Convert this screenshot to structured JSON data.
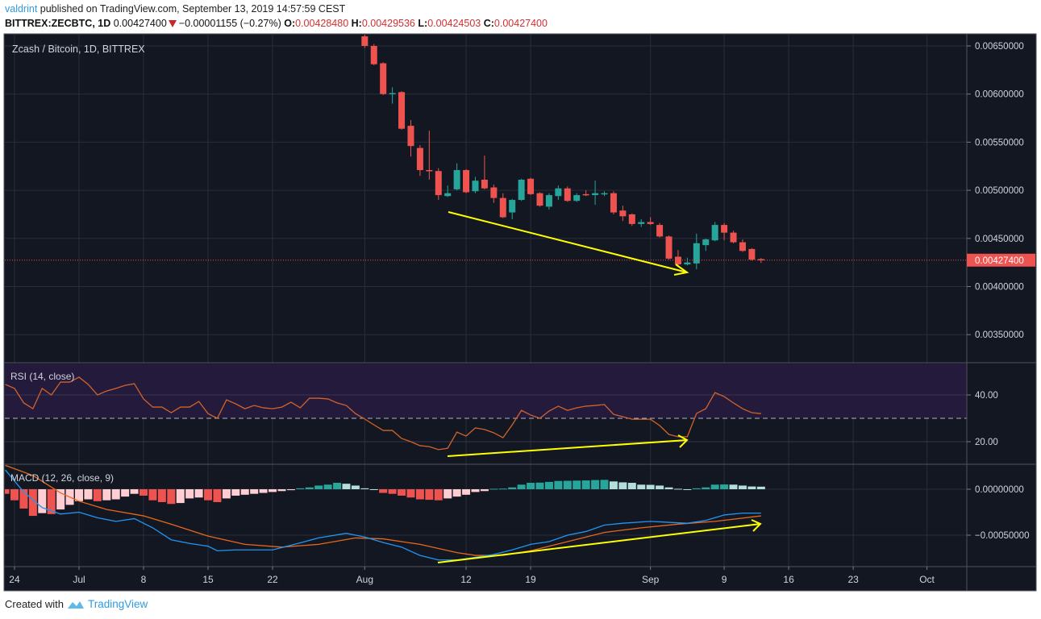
{
  "header": {
    "author": "valdrint",
    "published_text": "published on TradingView.com, September 13, 2019 14:57:59 CEST",
    "symbol": "BITTREX:ZECBTC, 1D",
    "last": "0.00427400",
    "change": "−0.00001155 (−0.27%)",
    "o_label": "O:",
    "o": "0.00428480",
    "h_label": "H:",
    "h": "0.00429536",
    "l_label": "L:",
    "l": "0.00424503",
    "c_label": "C:",
    "c": "0.00427400",
    "direction_icon": "triangle-down-icon"
  },
  "footer": {
    "created_with": "Created with",
    "brand": "TradingView",
    "logo_icon": "tradingview-logo-icon"
  },
  "colors": {
    "up": "#26a69a",
    "down": "#ef5350",
    "bg": "#131722",
    "rsi": "#d2632a",
    "macd": "#2196f3",
    "signal": "#e8671c",
    "annotation": "#ffff00",
    "rsi_band": "#231a3c"
  },
  "x_axis": {
    "labels": [
      {
        "date": "2019-06-24",
        "text": "24"
      },
      {
        "date": "2019-07-01",
        "text": "Jul"
      },
      {
        "date": "2019-07-08",
        "text": "8"
      },
      {
        "date": "2019-07-15",
        "text": "15"
      },
      {
        "date": "2019-07-22",
        "text": "22"
      },
      {
        "date": "2019-08-01",
        "text": "Aug"
      },
      {
        "date": "2019-08-12",
        "text": "12"
      },
      {
        "date": "2019-08-19",
        "text": "19"
      },
      {
        "date": "2019-09-01",
        "text": "Sep"
      },
      {
        "date": "2019-09-09",
        "text": "9"
      },
      {
        "date": "2019-09-16",
        "text": "16"
      },
      {
        "date": "2019-09-23",
        "text": "23"
      },
      {
        "date": "2019-10-01",
        "text": "Oct"
      }
    ]
  },
  "chart_data": [
    {
      "type": "candlestick",
      "title": "Zcash / Bitcoin, 1D, BITTREX",
      "start_date": "2019-08-01",
      "ohlc": [
        [
          0.0066,
          0.00662,
          0.00648,
          0.0065
        ],
        [
          0.0065,
          0.00652,
          0.0063,
          0.00631
        ],
        [
          0.00632,
          0.00633,
          0.00599,
          0.006
        ],
        [
          0.006,
          0.00607,
          0.0059,
          0.00601
        ],
        [
          0.00602,
          0.00603,
          0.00563,
          0.00564
        ],
        [
          0.00567,
          0.00573,
          0.00535,
          0.00546
        ],
        [
          0.00544,
          0.00547,
          0.00515,
          0.00521
        ],
        [
          0.00521,
          0.00562,
          0.00511,
          0.0052
        ],
        [
          0.0052,
          0.00523,
          0.0049,
          0.00495
        ],
        [
          0.00494,
          0.00505,
          0.00493,
          0.00497
        ],
        [
          0.00501,
          0.00528,
          0.005,
          0.00521
        ],
        [
          0.00521,
          0.00522,
          0.00497,
          0.00498
        ],
        [
          0.00499,
          0.00514,
          0.00497,
          0.0051
        ],
        [
          0.00511,
          0.00536,
          0.00501,
          0.00502
        ],
        [
          0.00503,
          0.00506,
          0.00487,
          0.00492
        ],
        [
          0.00492,
          0.00497,
          0.00471,
          0.00472
        ],
        [
          0.00477,
          0.00491,
          0.0047,
          0.0049
        ],
        [
          0.0049,
          0.00512,
          0.00489,
          0.00511
        ],
        [
          0.00512,
          0.00513,
          0.00495,
          0.00496
        ],
        [
          0.00497,
          0.00498,
          0.00483,
          0.00484
        ],
        [
          0.00483,
          0.00497,
          0.0048,
          0.00495
        ],
        [
          0.00494,
          0.00505,
          0.0049,
          0.00502
        ],
        [
          0.00502,
          0.00504,
          0.00488,
          0.00489
        ],
        [
          0.00489,
          0.00497,
          0.00488,
          0.00495
        ],
        [
          0.00496,
          0.005,
          0.00494,
          0.00495
        ],
        [
          0.00495,
          0.0051,
          0.00485,
          0.00497
        ],
        [
          0.00496,
          0.00499,
          0.00494,
          0.00497
        ],
        [
          0.00497,
          0.00499,
          0.00475,
          0.00477
        ],
        [
          0.00479,
          0.00484,
          0.00468,
          0.00473
        ],
        [
          0.00475,
          0.00476,
          0.00463,
          0.00465
        ],
        [
          0.00465,
          0.0047,
          0.00462,
          0.00467
        ],
        [
          0.00467,
          0.00472,
          0.00464,
          0.00465
        ],
        [
          0.00464,
          0.00466,
          0.00451,
          0.00452
        ],
        [
          0.00452,
          0.00453,
          0.00428,
          0.00429
        ],
        [
          0.00431,
          0.00438,
          0.00421,
          0.00423
        ],
        [
          0.00423,
          0.0043,
          0.00422,
          0.00425
        ],
        [
          0.00424,
          0.00455,
          0.00418,
          0.00445
        ],
        [
          0.00443,
          0.0045,
          0.00437,
          0.00449
        ],
        [
          0.00448,
          0.00467,
          0.00447,
          0.00464
        ],
        [
          0.00464,
          0.00466,
          0.00448,
          0.00456
        ],
        [
          0.00456,
          0.00458,
          0.00445,
          0.00446
        ],
        [
          0.00446,
          0.00449,
          0.00436,
          0.00437
        ],
        [
          0.00439,
          0.0044,
          0.00427,
          0.00428
        ],
        [
          0.0042848,
          0.00429536,
          0.00424503,
          0.004274
        ]
      ],
      "y_ticks": [
        {
          "value": 0.0065,
          "text": "0.00650000"
        },
        {
          "value": 0.006,
          "text": "0.00600000"
        },
        {
          "value": 0.0055,
          "text": "0.00550000"
        },
        {
          "value": 0.005,
          "text": "0.00500000"
        },
        {
          "value": 0.0045,
          "text": "0.00450000"
        },
        {
          "value": 0.004,
          "text": "0.00400000"
        },
        {
          "value": 0.0035,
          "text": "0.00350000"
        }
      ],
      "last_price": {
        "value": 0.004274,
        "text": "0.00427400"
      },
      "ylim": [
        0.0033,
        0.00662
      ]
    },
    {
      "type": "line",
      "title": "RSI (14, close)",
      "start_date": "2019-06-23",
      "values": [
        44.5,
        42.8,
        36.6,
        34.1,
        42.8,
        40,
        45.5,
        45.5,
        47.6,
        44.5,
        40,
        41.7,
        42.8,
        44.1,
        44.8,
        38.3,
        34.8,
        34.8,
        32.4,
        34.8,
        34.8,
        37.2,
        32,
        30,
        37.9,
        36.2,
        34.1,
        35.5,
        34.5,
        34.1,
        34.8,
        36.9,
        34.5,
        38.6,
        38.6,
        38.3,
        36.6,
        35.5,
        32,
        29.7,
        27.2,
        24.8,
        24.8,
        21.4,
        20,
        18.3,
        17.9,
        16.6,
        17.2,
        24.1,
        22.4,
        25.9,
        25.2,
        23.8,
        21.7,
        27.2,
        33.4,
        31.4,
        30,
        33.1,
        35.2,
        33.4,
        34.5,
        35.2,
        35.5,
        35.9,
        31.7,
        30.7,
        29.6,
        29.6,
        29.6,
        26.9,
        23.1,
        22.1,
        22.1,
        32.1,
        34.1,
        41,
        39.3,
        36.6,
        34.1,
        32.4,
        32
      ],
      "band": [
        30,
        70
      ],
      "y_ticks": [
        {
          "value": 40,
          "text": "40.00"
        },
        {
          "value": 20,
          "text": "20.00"
        }
      ],
      "ylim": [
        12,
        53
      ]
    },
    {
      "type": "bar",
      "title": "MACD (12, 26, close, 9)",
      "start_date": "2019-06-23",
      "histogram": [
        -5e-05,
        -0.00012,
        -0.00021,
        -0.00029,
        -0.00026,
        -0.00027,
        -0.00022,
        -0.00017,
        -0.00013,
        -0.00011,
        -0.00013,
        -0.00012,
        -0.00011,
        -8e-05,
        -5e-05,
        -7e-05,
        -0.00012,
        -0.00014,
        -0.00016,
        -0.00015,
        -0.0001,
        -9e-05,
        -0.00012,
        -0.00014,
        -0.0001,
        -7e-05,
        -6e-05,
        -5e-05,
        -4e-05,
        -3e-05,
        -2e-05,
        -1e-05,
        1e-05,
        2e-05,
        4e-05,
        5e-05,
        7e-05,
        6e-05,
        4e-05,
        1e-05,
        0,
        -4e-05,
        -5e-05,
        -7e-05,
        -9e-05,
        -0.00011,
        -0.000115,
        -0.00012,
        -0.0001,
        -8e-05,
        -6e-05,
        -3e-05,
        -2e-05,
        5e-06,
        7e-06,
        2e-05,
        5e-05,
        7e-05,
        7.2e-05,
        8e-05,
        9e-05,
        9.2e-05,
        9.4e-05,
        9.6e-05,
        0.0001,
        0.000102,
        8.5e-05,
        7.5e-05,
        7e-05,
        5e-05,
        4.8e-05,
        4e-05,
        2e-05,
        5e-06,
        0,
        1e-05,
        2e-05,
        5e-05,
        5.2e-05,
        5e-05,
        4e-05,
        3e-05,
        2.8e-05
      ],
      "macd": [
        [
          "2019-06-23",
          0.00021
        ],
        [
          "2019-06-25",
          -3e-05
        ],
        [
          "2019-06-27",
          -0.0002
        ],
        [
          "2019-06-29",
          -0.00027
        ],
        [
          "2019-07-01",
          -0.00025
        ],
        [
          "2019-07-03",
          -0.00031
        ],
        [
          "2019-07-05",
          -0.00035
        ],
        [
          "2019-07-07",
          -0.00032
        ],
        [
          "2019-07-09",
          -0.00042
        ],
        [
          "2019-07-11",
          -0.00055
        ],
        [
          "2019-07-13",
          -0.00059
        ],
        [
          "2019-07-15",
          -0.00062
        ],
        [
          "2019-07-16",
          -0.00067
        ],
        [
          "2019-07-18",
          -0.00066
        ],
        [
          "2019-07-22",
          -0.00066
        ],
        [
          "2019-07-24",
          -0.00061
        ],
        [
          "2019-07-27",
          -0.00053
        ],
        [
          "2019-07-30",
          -0.00048
        ],
        [
          "2019-08-01",
          -0.00052
        ],
        [
          "2019-08-03",
          -0.00058
        ],
        [
          "2019-08-05",
          -0.00063
        ],
        [
          "2019-08-07",
          -0.00072
        ],
        [
          "2019-08-09",
          -0.00077
        ],
        [
          "2019-08-11",
          -0.00077
        ],
        [
          "2019-08-13",
          -0.00074
        ],
        [
          "2019-08-15",
          -0.00071
        ],
        [
          "2019-08-17",
          -0.00066
        ],
        [
          "2019-08-19",
          -0.0006
        ],
        [
          "2019-08-21",
          -0.00057
        ],
        [
          "2019-08-23",
          -0.0005
        ],
        [
          "2019-08-25",
          -0.00046
        ],
        [
          "2019-08-27",
          -0.00039
        ],
        [
          "2019-08-29",
          -0.00037
        ],
        [
          "2019-09-01",
          -0.00035
        ],
        [
          "2019-09-03",
          -0.00036
        ],
        [
          "2019-09-05",
          -0.00037
        ],
        [
          "2019-09-07",
          -0.00034
        ],
        [
          "2019-09-09",
          -0.00028
        ],
        [
          "2019-09-11",
          -0.00026
        ],
        [
          "2019-09-13",
          -0.00026
        ]
      ],
      "signal": [
        [
          "2019-06-23",
          0.00026
        ],
        [
          "2019-06-26",
          0.00015
        ],
        [
          "2019-06-29",
          -4e-05
        ],
        [
          "2019-07-01",
          -0.00013
        ],
        [
          "2019-07-04",
          -0.00022
        ],
        [
          "2019-07-08",
          -0.00029
        ],
        [
          "2019-07-11",
          -0.00038
        ],
        [
          "2019-07-15",
          -0.00051
        ],
        [
          "2019-07-19",
          -0.0006
        ],
        [
          "2019-07-23",
          -0.00063
        ],
        [
          "2019-07-27",
          -0.0006
        ],
        [
          "2019-07-31",
          -0.00053
        ],
        [
          "2019-08-03",
          -0.00054
        ],
        [
          "2019-08-07",
          -0.0006
        ],
        [
          "2019-08-11",
          -0.00069
        ],
        [
          "2019-08-13",
          -0.00072
        ],
        [
          "2019-08-16",
          -0.00072
        ],
        [
          "2019-08-19",
          -0.00067
        ],
        [
          "2019-08-23",
          -0.00057
        ],
        [
          "2019-08-27",
          -0.00047
        ],
        [
          "2019-08-31",
          -0.00042
        ],
        [
          "2019-09-04",
          -0.00038
        ],
        [
          "2019-09-08",
          -0.00035
        ],
        [
          "2019-09-13",
          -0.00029
        ]
      ],
      "y_ticks": [
        {
          "value": 0,
          "text": "0.00000000"
        },
        {
          "value": -0.0005,
          "text": "−0.00050000"
        }
      ],
      "ylim": [
        -0.00085,
        0.00027
      ]
    }
  ]
}
